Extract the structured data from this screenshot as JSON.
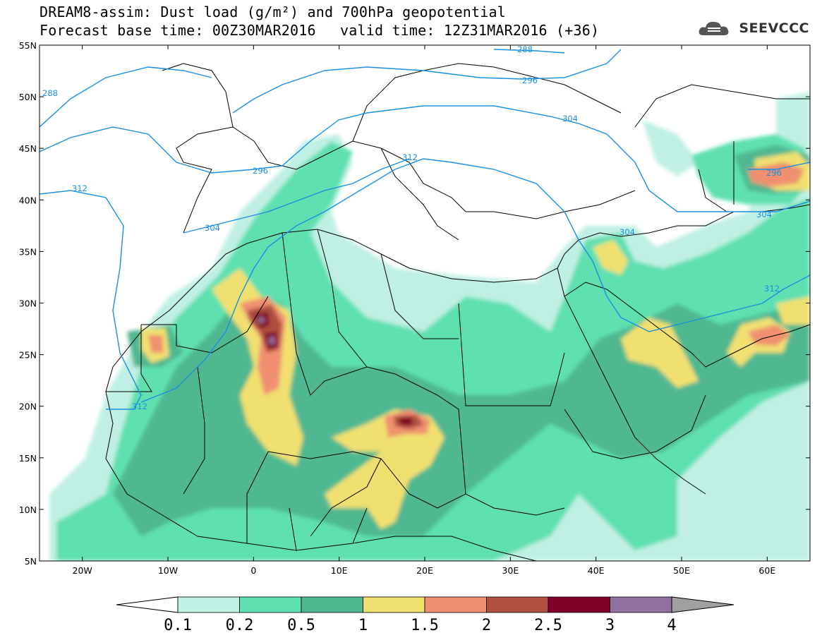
{
  "title": {
    "line1": "DREAM8-assim: Dust load (g/m²) and 700hPa geopotential",
    "line2": "Forecast base time: 00Z30MAR2016",
    "line3": "valid time: 12Z31MAR2016 (+36)"
  },
  "logo": {
    "text": "SEEVCCC",
    "icon": "cloud-logo-icon"
  },
  "axes": {
    "lat_labels": [
      "55N",
      "50N",
      "45N",
      "40N",
      "35N",
      "30N",
      "25N",
      "20N",
      "15N",
      "10N",
      "5N"
    ],
    "lon_labels": [
      "20W",
      "10W",
      "0",
      "10E",
      "20E",
      "30E",
      "40E",
      "50E",
      "60E"
    ],
    "lat_range": [
      5,
      55
    ],
    "lon_range": [
      -25,
      65
    ]
  },
  "contours": {
    "color": "#1a8fe0",
    "labels": [
      "288",
      "296",
      "304",
      "312",
      "288",
      "296",
      "304",
      "312",
      "296",
      "304",
      "304",
      "312",
      "312"
    ]
  },
  "colorbar": {
    "levels": [
      "0.1",
      "0.2",
      "0.5",
      "1",
      "1.5",
      "2",
      "2.5",
      "3",
      "4"
    ],
    "colors": [
      "#c0f0e4",
      "#5ee0b0",
      "#50b890",
      "#f0e070",
      "#f09070",
      "#b05040",
      "#800028",
      "#9070a0"
    ]
  }
}
